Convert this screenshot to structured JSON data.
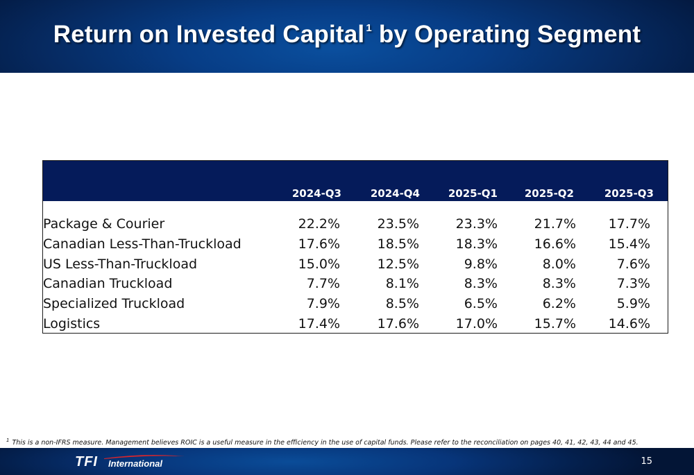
{
  "header": {
    "title": "Return on Invested Capital",
    "title_sup": "1",
    "title_rest": " by Operating Segment"
  },
  "table": {
    "columns": [
      "2024-Q3",
      "2024-Q4",
      "2025-Q1",
      "2025-Q2",
      "2025-Q3"
    ],
    "rows": [
      {
        "label": "Package & Courier",
        "values": [
          "22.2%",
          "23.5%",
          "23.3%",
          "21.7%",
          "17.7%"
        ]
      },
      {
        "label": "Canadian Less-Than-Truckload",
        "values": [
          "17.6%",
          "18.5%",
          "18.3%",
          "16.6%",
          "15.4%"
        ]
      },
      {
        "label": "US Less-Than-Truckload",
        "values": [
          "15.0%",
          "12.5%",
          "9.8%",
          "8.0%",
          "7.6%"
        ]
      },
      {
        "label": "Canadian Truckload",
        "values": [
          "7.7%",
          "8.1%",
          "8.3%",
          "8.3%",
          "7.3%"
        ]
      },
      {
        "label": "Specialized Truckload",
        "values": [
          "7.9%",
          "8.5%",
          "6.5%",
          "6.2%",
          "5.9%"
        ]
      },
      {
        "label": "Logistics",
        "values": [
          "17.4%",
          "17.6%",
          "17.0%",
          "15.7%",
          "14.6%"
        ]
      }
    ]
  },
  "footnote": {
    "marker": "1",
    "text": "This is a non-IFRS measure. Management believes ROIC is a useful measure in the efficiency in the use of capital funds. Please refer to the reconciliation on pages 40, 41, 42, 43, 44 and 45."
  },
  "footer": {
    "logo_main": "TFI",
    "logo_sub": "International",
    "page_number": "15"
  },
  "colors": {
    "header_blue": "#073d86",
    "table_header": "#051b5a",
    "logo_swoosh": "#d9262c"
  }
}
